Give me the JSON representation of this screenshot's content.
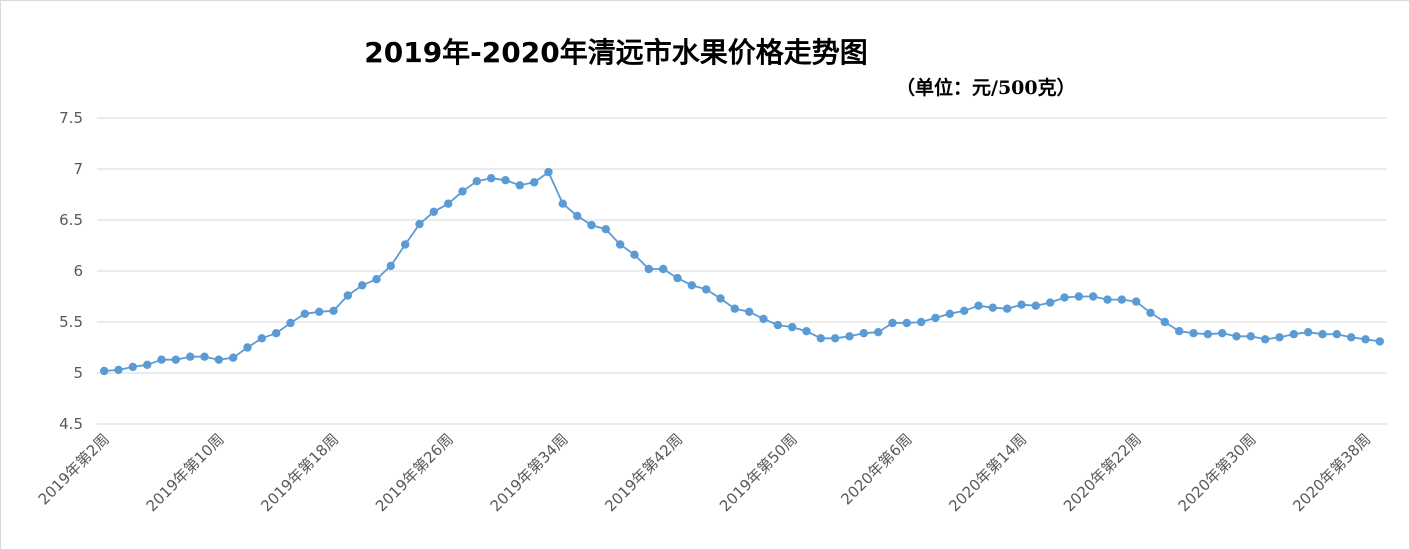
{
  "chart_data": {
    "type": "line",
    "title": "2019年-2020年清远市水果价格走势图",
    "subtitle": "（单位：元/500克）",
    "xlabel": "",
    "ylabel": "",
    "ylim": [
      4.5,
      7.5
    ],
    "yticks": [
      "7.5",
      "7",
      "6.5",
      "6",
      "5.5",
      "5",
      "4.5"
    ],
    "grid": true,
    "legend": "none",
    "series_color": "#5b9bd5",
    "x_tick_labels": [
      "2019年第2周",
      "2019年第10周",
      "2019年第18周",
      "2019年第26周",
      "2019年第34周",
      "2019年第42周",
      "2019年第50周",
      "2020年第6周",
      "2020年第14周",
      "2020年第22周",
      "2020年第30周",
      "2020年第38周"
    ],
    "x": [
      "2019年第2周",
      "2019年第3周",
      "2019年第4周",
      "2019年第5周",
      "2019年第6周",
      "2019年第7周",
      "2019年第8周",
      "2019年第9周",
      "2019年第10周",
      "2019年第11周",
      "2019年第12周",
      "2019年第13周",
      "2019年第14周",
      "2019年第15周",
      "2019年第16周",
      "2019年第17周",
      "2019年第18周",
      "2019年第19周",
      "2019年第20周",
      "2019年第21周",
      "2019年第22周",
      "2019年第23周",
      "2019年第24周",
      "2019年第25周",
      "2019年第26周",
      "2019年第27周",
      "2019年第28周",
      "2019年第29周",
      "2019年第30周",
      "2019年第31周",
      "2019年第32周",
      "2019年第33周",
      "2019年第34周",
      "2019年第35周",
      "2019年第36周",
      "2019年第37周",
      "2019年第38周",
      "2019年第39周",
      "2019年第40周",
      "2019年第41周",
      "2019年第42周",
      "2019年第43周",
      "2019年第44周",
      "2019年第45周",
      "2019年第46周",
      "2019年第47周",
      "2019年第48周",
      "2019年第49周",
      "2019年第50周",
      "2019年第51周",
      "2019年第52周",
      "2020年第1周",
      "2020年第2周",
      "2020年第3周",
      "2020年第4周",
      "2020年第5周",
      "2020年第6周",
      "2020年第7周",
      "2020年第8周",
      "2020年第9周",
      "2020年第10周",
      "2020年第11周",
      "2020年第12周",
      "2020年第13周",
      "2020年第14周",
      "2020年第15周",
      "2020年第16周",
      "2020年第17周",
      "2020年第18周",
      "2020年第19周",
      "2020年第20周",
      "2020年第21周",
      "2020年第22周",
      "2020年第23周",
      "2020年第24周",
      "2020年第25周",
      "2020年第26周",
      "2020年第27周",
      "2020年第28周",
      "2020年第29周",
      "2020年第30周",
      "2020年第31周",
      "2020年第32周",
      "2020年第33周",
      "2020年第34周",
      "2020年第35周",
      "2020年第36周",
      "2020年第37周",
      "2020年第38周",
      "2020年第39周"
    ],
    "values": [
      5.02,
      5.03,
      5.06,
      5.08,
      5.13,
      5.13,
      5.16,
      5.16,
      5.13,
      5.15,
      5.25,
      5.34,
      5.39,
      5.49,
      5.58,
      5.6,
      5.61,
      5.76,
      5.86,
      5.92,
      6.05,
      6.26,
      6.46,
      6.58,
      6.66,
      6.78,
      6.88,
      6.91,
      6.89,
      6.84,
      6.87,
      6.97,
      6.66,
      6.54,
      6.45,
      6.41,
      6.26,
      6.16,
      6.02,
      6.02,
      5.93,
      5.86,
      5.82,
      5.73,
      5.63,
      5.6,
      5.53,
      5.47,
      5.45,
      5.41,
      5.34,
      5.34,
      5.36,
      5.39,
      5.4,
      5.49,
      5.49,
      5.5,
      5.54,
      5.58,
      5.61,
      5.66,
      5.64,
      5.63,
      5.67,
      5.66,
      5.69,
      5.74,
      5.75,
      5.75,
      5.72,
      5.72,
      5.7,
      5.59,
      5.5,
      5.41,
      5.39,
      5.38,
      5.39,
      5.36,
      5.36,
      5.33,
      5.35,
      5.38,
      5.4,
      5.38,
      5.38,
      5.35,
      5.33,
      5.31
    ]
  }
}
